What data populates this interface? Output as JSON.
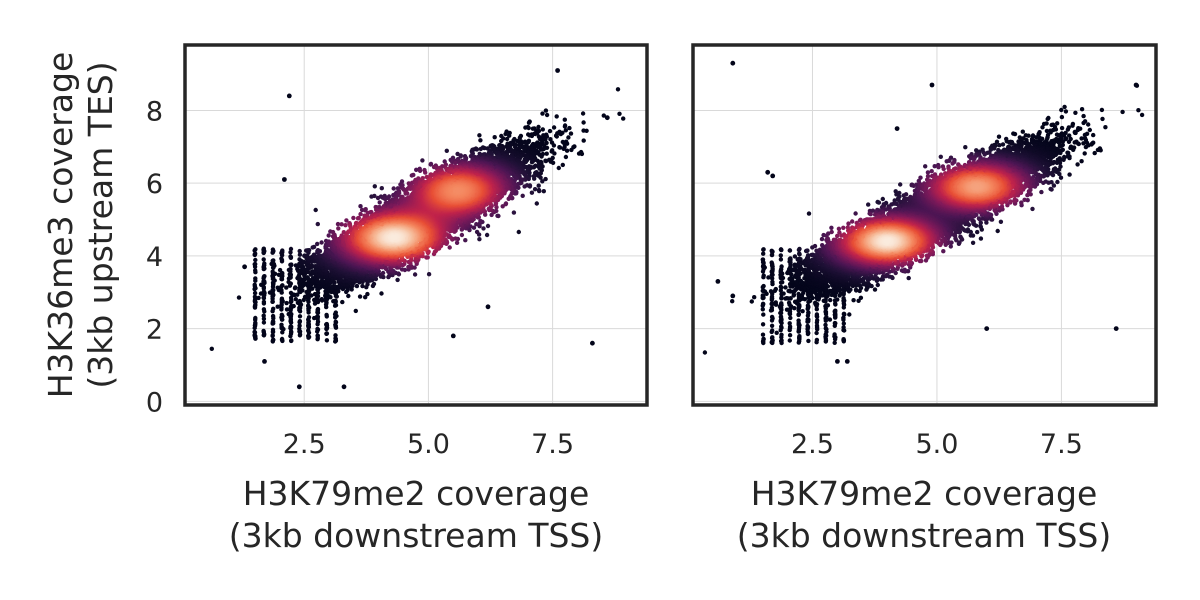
{
  "chart_data": [
    {
      "type": "scatter",
      "title": "",
      "xlabel": [
        "H3K79me2 coverage",
        "(3kb downstream TSS)"
      ],
      "ylabel": [
        "H3K36me3 coverage",
        "(3kb upstream TES)"
      ],
      "xlim": [
        0.1,
        9.4
      ],
      "ylim": [
        -0.1,
        9.8
      ],
      "xticks": [
        2.5,
        5.0,
        7.5
      ],
      "xtick_labels": [
        "2.5",
        "5.0",
        "7.5"
      ],
      "yticks": [
        0,
        2,
        4,
        6,
        8
      ],
      "ytick_labels": [
        "0",
        "2",
        "4",
        "6",
        "8"
      ],
      "grid": true,
      "colormap": "rocket (density)",
      "density_clusters": [
        {
          "x": 4.3,
          "y": 4.5,
          "sx": 0.75,
          "sy": 0.5,
          "weight": 1.0
        },
        {
          "x": 5.6,
          "y": 5.8,
          "sx": 0.7,
          "sy": 0.5,
          "weight": 0.8
        }
      ],
      "outliers": [
        [
          2.2,
          8.4
        ],
        [
          7.6,
          9.1
        ],
        [
          8.6,
          7.8
        ],
        [
          2.1,
          6.1
        ],
        [
          2.4,
          0.4
        ],
        [
          3.3,
          0.4
        ],
        [
          8.3,
          1.6
        ],
        [
          5.5,
          1.8
        ],
        [
          6.2,
          2.6
        ],
        [
          1.7,
          1.1
        ],
        [
          1.3,
          3.7
        ]
      ]
    },
    {
      "type": "scatter",
      "title": "",
      "xlabel": [
        "H3K79me2 coverage",
        "(3kb downstream TSS)"
      ],
      "ylabel": [
        "",
        ""
      ],
      "xlim": [
        0.1,
        9.4
      ],
      "ylim": [
        -0.1,
        9.8
      ],
      "xticks": [
        2.5,
        5.0,
        7.5
      ],
      "xtick_labels": [
        "2.5",
        "5.0",
        "7.5"
      ],
      "yticks": [
        0,
        2,
        4,
        6,
        8
      ],
      "ytick_labels": [],
      "grid": true,
      "colormap": "rocket (density)",
      "density_clusters": [
        {
          "x": 4.0,
          "y": 4.4,
          "sx": 0.7,
          "sy": 0.45,
          "weight": 1.0
        },
        {
          "x": 5.8,
          "y": 5.9,
          "sx": 0.7,
          "sy": 0.45,
          "weight": 0.85
        }
      ],
      "outliers": [
        [
          0.9,
          9.3
        ],
        [
          4.9,
          8.7
        ],
        [
          9.0,
          8.7
        ],
        [
          4.2,
          7.5
        ],
        [
          1.6,
          6.3
        ],
        [
          1.7,
          6.2
        ],
        [
          0.6,
          3.3
        ],
        [
          0.9,
          2.9
        ],
        [
          3.0,
          1.1
        ],
        [
          3.2,
          1.1
        ],
        [
          6.0,
          2.0
        ],
        [
          8.6,
          2.0
        ]
      ]
    }
  ]
}
